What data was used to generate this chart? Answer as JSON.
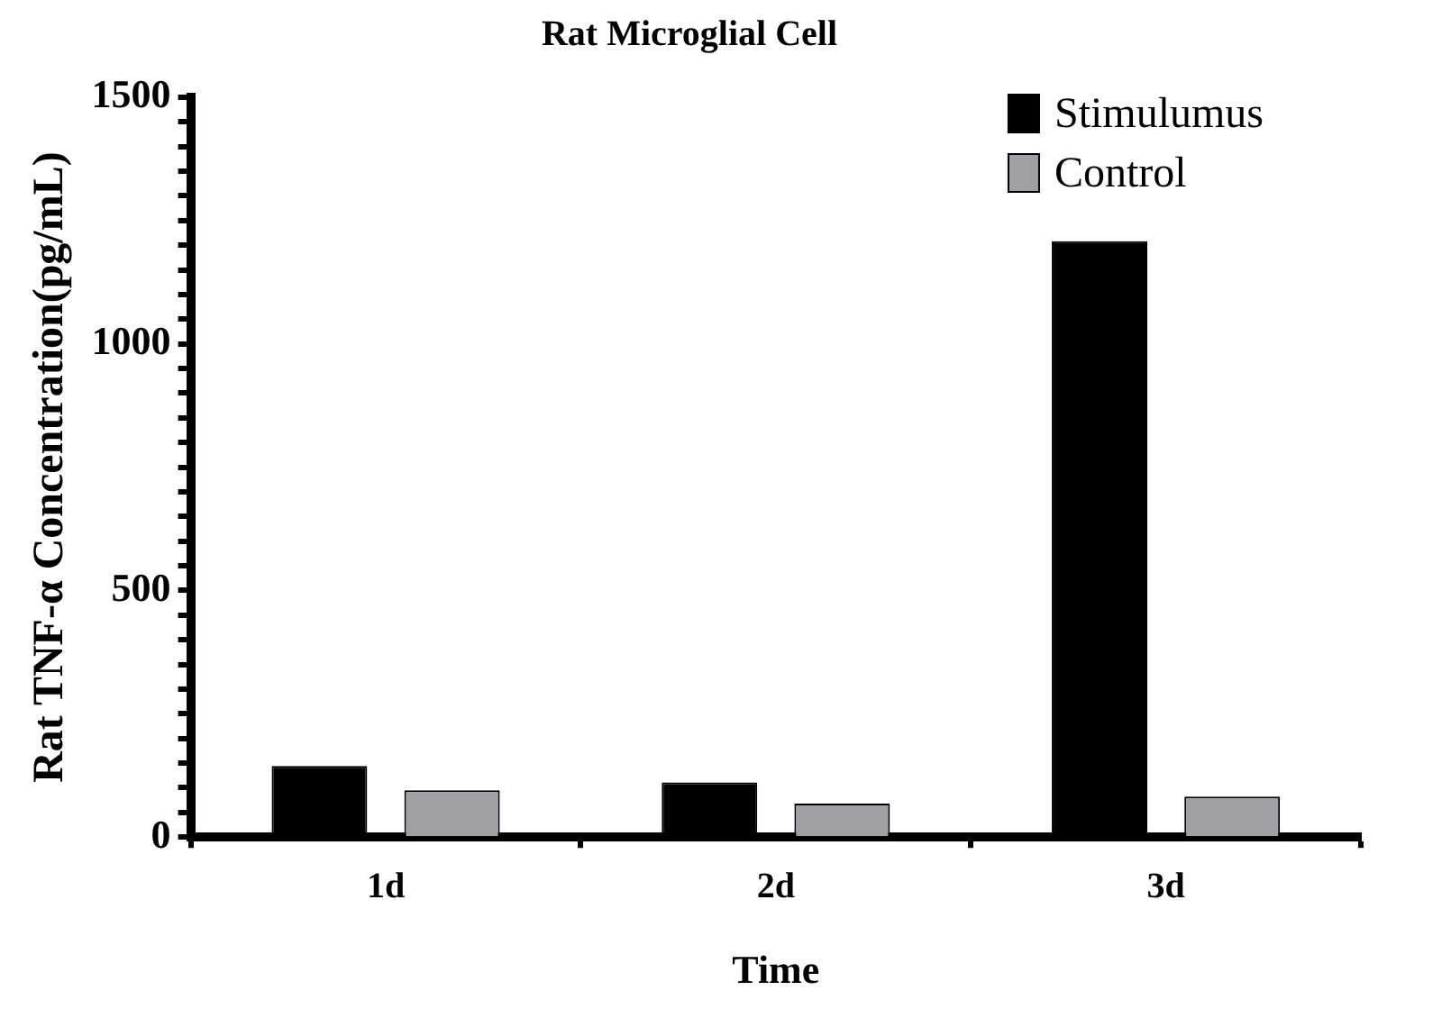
{
  "chart_data": {
    "type": "bar",
    "title": "Rat Microglial Cell",
    "xlabel": "Time",
    "ylabel": "Rat TNF-α Concentration(pg/mL)",
    "categories": [
      "1d",
      "2d",
      "3d"
    ],
    "series": [
      {
        "name": "Stimulumus",
        "color": "#000000",
        "values": [
          144,
          111,
          1208
        ]
      },
      {
        "name": "Control",
        "color": "#a0a0a4",
        "values": [
          95,
          68,
          82
        ]
      }
    ],
    "ylim": [
      0,
      1500
    ],
    "yticks": [
      0,
      {
        "value": 50,
        "label": null
      },
      {
        "value": 100,
        "label": null
      },
      {
        "value": 150,
        "label": null
      },
      {
        "value": 200,
        "label": null
      },
      {
        "value": 250,
        "label": null
      },
      {
        "value": 300,
        "label": null
      },
      {
        "value": 350,
        "label": null
      },
      {
        "value": 400,
        "label": null
      },
      {
        "value": 450,
        "label": null
      },
      500,
      {
        "value": 550,
        "label": null
      },
      {
        "value": 600,
        "label": null
      },
      {
        "value": 650,
        "label": null
      },
      {
        "value": 700,
        "label": null
      },
      {
        "value": 750,
        "label": null
      },
      {
        "value": 800,
        "label": null
      },
      {
        "value": 850,
        "label": null
      },
      {
        "value": 900,
        "label": null
      },
      {
        "value": 950,
        "label": null
      },
      1000,
      {
        "value": 1050,
        "label": null
      },
      {
        "value": 1100,
        "label": null
      },
      {
        "value": 1150,
        "label": null
      },
      {
        "value": 1200,
        "label": null
      },
      {
        "value": 1250,
        "label": null
      },
      {
        "value": 1300,
        "label": null
      },
      {
        "value": 1350,
        "label": null
      },
      {
        "value": 1400,
        "label": null
      },
      {
        "value": 1450,
        "label": null
      },
      1500
    ],
    "grid": false,
    "legend": "top right"
  }
}
